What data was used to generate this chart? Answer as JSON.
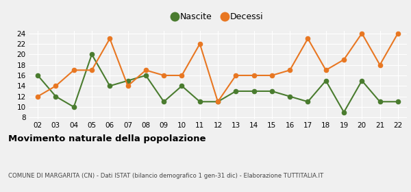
{
  "years": [
    "02",
    "03",
    "04",
    "05",
    "06",
    "07",
    "08",
    "09",
    "10",
    "11",
    "12",
    "13",
    "14",
    "15",
    "16",
    "17",
    "18",
    "19",
    "20",
    "21",
    "22"
  ],
  "nascite": [
    16,
    12,
    10,
    20,
    14,
    15,
    16,
    11,
    14,
    11,
    11,
    13,
    13,
    13,
    12,
    11,
    15,
    9,
    15,
    11,
    11
  ],
  "decessi": [
    12,
    14,
    17,
    17,
    23,
    14,
    17,
    16,
    16,
    22,
    11,
    16,
    16,
    16,
    17,
    23,
    17,
    19,
    24,
    18,
    24
  ],
  "nascite_color": "#4a7c2f",
  "decessi_color": "#e87722",
  "nascite_label": "Nascite",
  "decessi_label": "Decessi",
  "ylim": [
    8,
    24
  ],
  "yticks": [
    8,
    10,
    12,
    14,
    16,
    18,
    20,
    22,
    24
  ],
  "title": "Movimento naturale della popolazione",
  "subtitle": "COMUNE DI MARGARITA (CN) - Dati ISTAT (bilancio demografico 1 gen-31 dic) - Elaborazione TUTTITALIA.IT",
  "bg_color": "#f0f0f0",
  "grid_color": "#ffffff",
  "marker": "o",
  "marker_size": 4.5,
  "linewidth": 1.5
}
